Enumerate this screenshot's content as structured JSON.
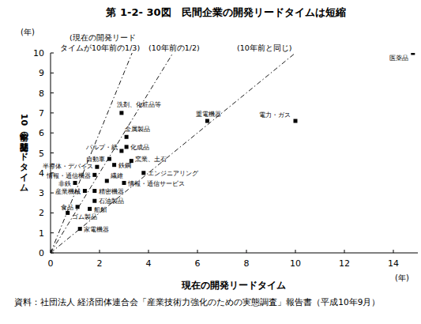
{
  "chart_data": {
    "type": "scatter",
    "title": "第 1-2- 30図　民間企業の開発リードタイムは短縮",
    "x_label": "現在の開発リードタイム",
    "y_label": "10年前の開発リードタイム",
    "x_unit": "(年)",
    "y_unit": "(年)",
    "source": "資料：社団法人 経済団体連合会「産業技術力強化のための実態調査」報告書（平成10年9月）",
    "xlim": [
      0,
      15
    ],
    "ylim": [
      0,
      10
    ],
    "xticks": [
      0,
      2,
      4,
      6,
      8,
      10,
      12,
      14
    ],
    "yticks": [
      0,
      1,
      2,
      3,
      4,
      5,
      6,
      7,
      8,
      9,
      10
    ],
    "color": "#000000",
    "marker": "square",
    "labels": [
      "医薬品",
      "電力・ガス",
      "重電機器",
      "洗剤、化粧品等",
      "金属製品",
      "パルプ・紙",
      "化成品",
      "自動車",
      "窯業、土石",
      "半導体・デバイス",
      "鉄鋼",
      "エンジニアリング",
      "情報・通信機器",
      "繊維",
      "情報・通信サービス",
      "非鉄",
      "産業機械",
      "精密機器",
      "石油製品",
      "食品",
      "船舶",
      "ゴム製品",
      "家電機器"
    ],
    "x": [
      14.8,
      10.0,
      6.4,
      2.9,
      3.1,
      2.9,
      3.1,
      2.4,
      3.3,
      1.9,
      2.6,
      3.8,
      1.8,
      2.3,
      3.0,
      1.0,
      1.4,
      1.8,
      1.8,
      1.1,
      1.6,
      0.7,
      1.2
    ],
    "values": [
      10.0,
      6.6,
      6.6,
      7.0,
      5.8,
      5.1,
      5.3,
      4.7,
      4.6,
      4.3,
      4.4,
      4.0,
      3.9,
      3.6,
      3.5,
      3.5,
      3.1,
      3.1,
      2.6,
      2.3,
      2.2,
      2.0,
      1.2
    ],
    "reference_lines": [
      {
        "label": "(現在の開発リード\nタイムが10年前の1/3)",
        "x": [
          0,
          3.33
        ],
        "values": [
          0,
          10
        ],
        "line_style": "dashdot"
      },
      {
        "label": "(10年前の1/2)",
        "x": [
          0,
          5
        ],
        "values": [
          0,
          10
        ],
        "line_style": "dashdot"
      },
      {
        "label": "(10年前と同じ)",
        "x": [
          0,
          10
        ],
        "values": [
          0,
          10
        ],
        "line_style": "dashdot"
      }
    ]
  }
}
